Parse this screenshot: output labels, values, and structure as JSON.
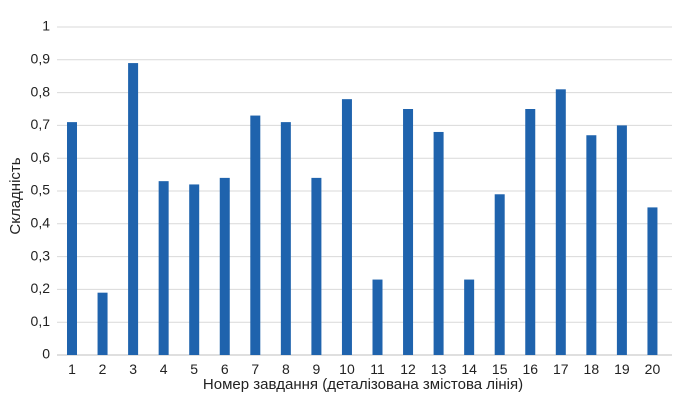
{
  "chart_data": {
    "type": "bar",
    "categories": [
      "1",
      "2",
      "3",
      "4",
      "5",
      "6",
      "7",
      "8",
      "9",
      "10",
      "11",
      "12",
      "13",
      "14",
      "15",
      "16",
      "17",
      "18",
      "19",
      "20"
    ],
    "values": [
      0.71,
      0.19,
      0.89,
      0.53,
      0.52,
      0.54,
      0.73,
      0.71,
      0.54,
      0.78,
      0.23,
      0.75,
      0.68,
      0.23,
      0.49,
      0.75,
      0.81,
      0.67,
      0.7,
      0.45
    ],
    "xlabel": "Номер завдання (деталізована змістова лінія)",
    "ylabel": "Складність",
    "ylim": [
      0,
      1
    ],
    "yticks": [
      "0",
      "0,1",
      "0,2",
      "0,3",
      "0,4",
      "0,5",
      "0,6",
      "0,7",
      "0,8",
      "0,9",
      "1"
    ],
    "grid": true,
    "legend": "none",
    "bar_color": "#1f63ad"
  }
}
